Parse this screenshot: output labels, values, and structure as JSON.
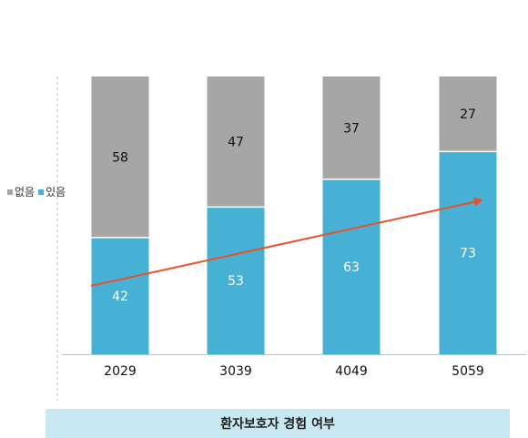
{
  "chart_data": {
    "type": "bar",
    "stacked": true,
    "categories": [
      "2029",
      "3039",
      "4049",
      "5059"
    ],
    "series": [
      {
        "name": "있음",
        "values": [
          42,
          53,
          63,
          73
        ],
        "color": "#46b1d4",
        "label_color": "#ffffff"
      },
      {
        "name": "없음",
        "values": [
          58,
          47,
          37,
          27
        ],
        "color": "#a6a6a6",
        "label_color": "#111111"
      }
    ],
    "ylim": [
      0,
      100
    ],
    "legend_position": "left",
    "trend_arrow": {
      "from_value": 42,
      "to_value": 73,
      "color": "#e8502a"
    },
    "xlabel": "환자보호자 경험 여부"
  },
  "legend": {
    "items": [
      {
        "label": "없음",
        "color": "#a6a6a6"
      },
      {
        "label": "있음",
        "color": "#46b1d4"
      }
    ]
  }
}
